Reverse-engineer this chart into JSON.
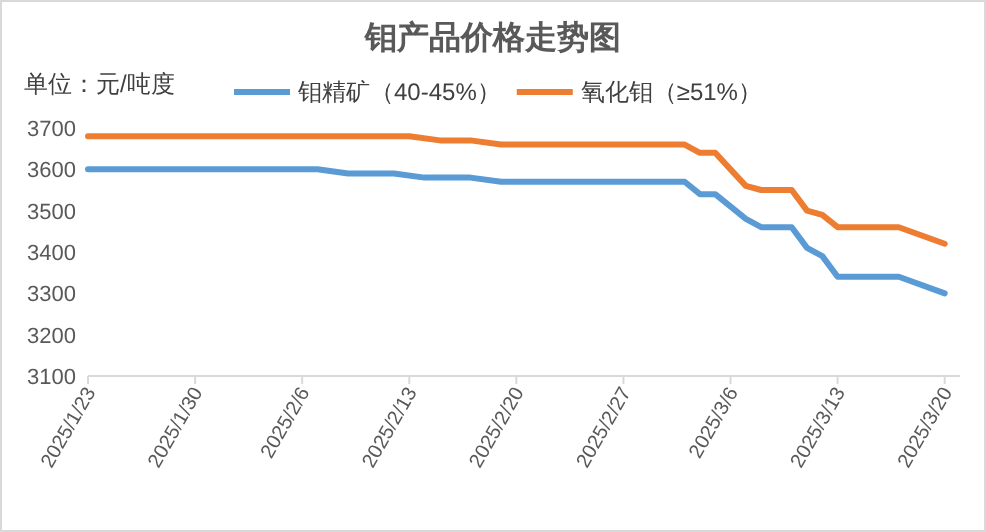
{
  "chart_data": {
    "type": "line",
    "title": "钼产品价格走势图",
    "annotations": [
      "单位：元/吨度"
    ],
    "legend": "top",
    "grid": false,
    "marker": "none",
    "line_style": "solid",
    "xlim": [
      "2025-01-23",
      "2025-03-21"
    ],
    "ylim": [
      3100,
      3700
    ],
    "yticks": [
      3100,
      3200,
      3300,
      3400,
      3500,
      3600,
      3700
    ],
    "xticks": [
      {
        "value": "2025-01-23",
        "label": "2025/1/23"
      },
      {
        "value": "2025-01-30",
        "label": "2025/1/30"
      },
      {
        "value": "2025-02-06",
        "label": "2025/2/6"
      },
      {
        "value": "2025-02-13",
        "label": "2025/2/13"
      },
      {
        "value": "2025-02-20",
        "label": "2025/2/20"
      },
      {
        "value": "2025-02-27",
        "label": "2025/2/27"
      },
      {
        "value": "2025-03-06",
        "label": "2025/3/6"
      },
      {
        "value": "2025-03-13",
        "label": "2025/3/13"
      },
      {
        "value": "2025-03-20",
        "label": "2025/3/20"
      }
    ],
    "series": [
      {
        "name": "钼精矿（40-45%）",
        "color": "#5b9bd5",
        "x": [
          "2025-01-23",
          "2025-02-07",
          "2025-02-09",
          "2025-02-12",
          "2025-02-14",
          "2025-02-17",
          "2025-02-19",
          "2025-03-03",
          "2025-03-04",
          "2025-03-05",
          "2025-03-07",
          "2025-03-08",
          "2025-03-10",
          "2025-03-11",
          "2025-03-12",
          "2025-03-13",
          "2025-03-17",
          "2025-03-20"
        ],
        "values": [
          3600,
          3600,
          3590,
          3590,
          3580,
          3580,
          3570,
          3570,
          3540,
          3540,
          3480,
          3460,
          3460,
          3410,
          3390,
          3340,
          3340,
          3300
        ]
      },
      {
        "name": "氧化钼（≥51%）",
        "color": "#ed7d31",
        "x": [
          "2025-01-23",
          "2025-02-13",
          "2025-02-15",
          "2025-02-17",
          "2025-02-19",
          "2025-03-03",
          "2025-03-04",
          "2025-03-05",
          "2025-03-06",
          "2025-03-07",
          "2025-03-08",
          "2025-03-10",
          "2025-03-11",
          "2025-03-12",
          "2025-03-13",
          "2025-03-17",
          "2025-03-20"
        ],
        "values": [
          3680,
          3680,
          3670,
          3670,
          3660,
          3660,
          3640,
          3640,
          3600,
          3560,
          3550,
          3550,
          3500,
          3490,
          3460,
          3460,
          3420
        ]
      }
    ]
  }
}
